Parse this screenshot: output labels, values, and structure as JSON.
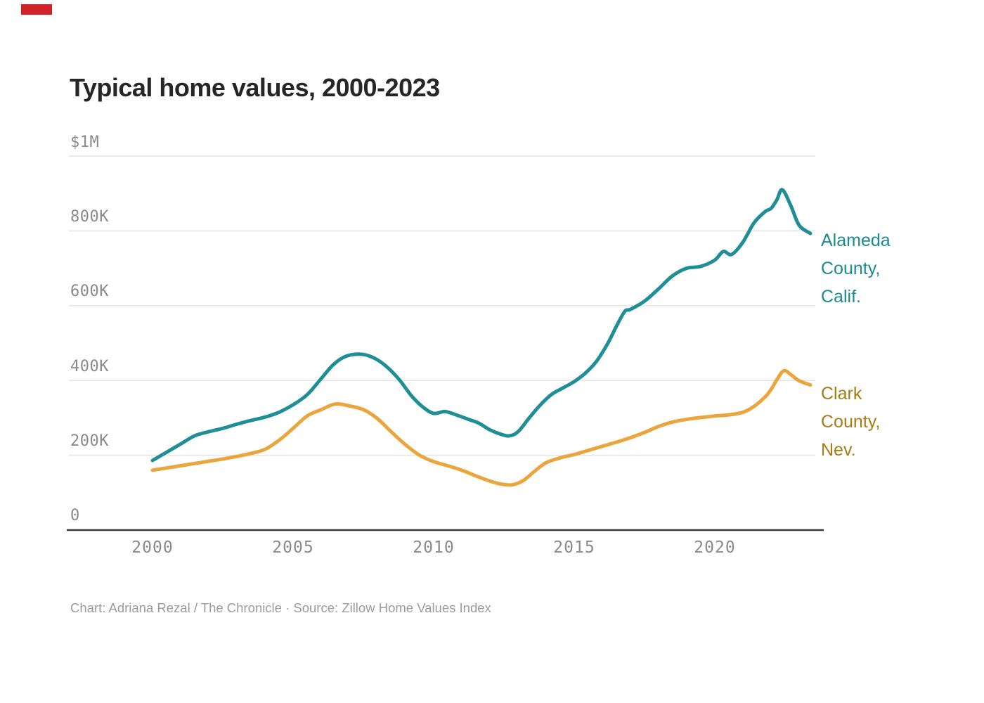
{
  "brand": {
    "flag_color": "#d2232a"
  },
  "title": "Typical home values, 2000-2023",
  "caption": "Chart: Adriana Rezal / The Chronicle · Source: Zillow Home Values Index",
  "chart_data": {
    "type": "line",
    "title": "Typical home values, 2000-2023",
    "xlabel": "",
    "ylabel": "",
    "grid": "horizontal",
    "legend_position": "right-of-line-ends",
    "xlim": [
      1997,
      2027
    ],
    "ylim": [
      0,
      1000000
    ],
    "x_ticks": [
      {
        "value": 2000,
        "label": "2000"
      },
      {
        "value": 2005,
        "label": "2005"
      },
      {
        "value": 2010,
        "label": "2010"
      },
      {
        "value": 2015,
        "label": "2015"
      },
      {
        "value": 2020,
        "label": "2020"
      }
    ],
    "y_ticks": [
      {
        "value": 1000000,
        "label": "$1M"
      },
      {
        "value": 800000,
        "label": "800K"
      },
      {
        "value": 600000,
        "label": "600K"
      },
      {
        "value": 400000,
        "label": "400K"
      },
      {
        "value": 200000,
        "label": "200K"
      },
      {
        "value": 0,
        "label": "0"
      }
    ],
    "series": [
      {
        "name": "Alameda County, Calif.",
        "label_lines": [
          "Alameda",
          "County,",
          "Calif."
        ],
        "line_color": "#1f8e96",
        "label_color": "#1b8a92",
        "x": [
          2000.0,
          2000.5,
          2001.0,
          2001.5,
          2002.0,
          2002.5,
          2003.0,
          2003.5,
          2004.0,
          2004.5,
          2005.0,
          2005.5,
          2006.0,
          2006.4,
          2006.8,
          2007.2,
          2007.6,
          2008.0,
          2008.4,
          2008.8,
          2009.2,
          2009.6,
          2010.0,
          2010.4,
          2010.8,
          2011.2,
          2011.6,
          2012.0,
          2012.4,
          2012.7,
          2013.0,
          2013.4,
          2013.8,
          2014.2,
          2014.6,
          2015.0,
          2015.4,
          2015.8,
          2016.2,
          2016.5,
          2016.8,
          2017.0,
          2017.5,
          2018.0,
          2018.5,
          2019.0,
          2019.5,
          2020.0,
          2020.3,
          2020.6,
          2021.0,
          2021.4,
          2021.8,
          2022.0,
          2022.2,
          2022.4,
          2022.7,
          2023.0,
          2023.4
        ],
        "values": [
          186000,
          208000,
          230000,
          252000,
          263000,
          272000,
          283000,
          293000,
          302000,
          315000,
          335000,
          362000,
          405000,
          440000,
          462000,
          470000,
          468000,
          455000,
          432000,
          400000,
          360000,
          330000,
          312000,
          317000,
          308000,
          297000,
          286000,
          268000,
          256000,
          252000,
          263000,
          300000,
          335000,
          363000,
          380000,
          397000,
          420000,
          452000,
          500000,
          545000,
          585000,
          590000,
          612000,
          645000,
          680000,
          700000,
          705000,
          722000,
          745000,
          737000,
          770000,
          822000,
          852000,
          860000,
          882000,
          910000,
          868000,
          815000,
          793000
        ]
      },
      {
        "name": "Clark County, Nev.",
        "label_lines": [
          "Clark",
          "County,",
          "Nev."
        ],
        "line_color": "#eaa63c",
        "label_color": "#a87c15",
        "x": [
          2000.0,
          2000.5,
          2001.0,
          2001.5,
          2002.0,
          2002.5,
          2003.0,
          2003.5,
          2004.0,
          2004.5,
          2005.0,
          2005.5,
          2006.0,
          2006.5,
          2007.0,
          2007.5,
          2008.0,
          2008.5,
          2009.0,
          2009.5,
          2010.0,
          2010.5,
          2011.0,
          2011.5,
          2012.0,
          2012.4,
          2012.8,
          2013.2,
          2013.6,
          2014.0,
          2014.5,
          2015.0,
          2015.5,
          2016.0,
          2016.5,
          2017.0,
          2017.5,
          2018.0,
          2018.5,
          2019.0,
          2019.5,
          2020.0,
          2020.5,
          2021.0,
          2021.4,
          2021.8,
          2022.0,
          2022.2,
          2022.45,
          2022.7,
          2023.0,
          2023.4
        ],
        "values": [
          160000,
          166000,
          172000,
          178000,
          184000,
          190000,
          197000,
          205000,
          216000,
          240000,
          272000,
          305000,
          322000,
          337000,
          332000,
          322000,
          298000,
          262000,
          228000,
          200000,
          183000,
          172000,
          160000,
          145000,
          131000,
          123000,
          121000,
          133000,
          158000,
          180000,
          193000,
          202000,
          213000,
          224000,
          235000,
          247000,
          261000,
          277000,
          289000,
          296000,
          301000,
          305000,
          308000,
          315000,
          331000,
          357000,
          376000,
          401000,
          426000,
          416000,
          399000,
          388000
        ]
      }
    ],
    "annotations": []
  }
}
